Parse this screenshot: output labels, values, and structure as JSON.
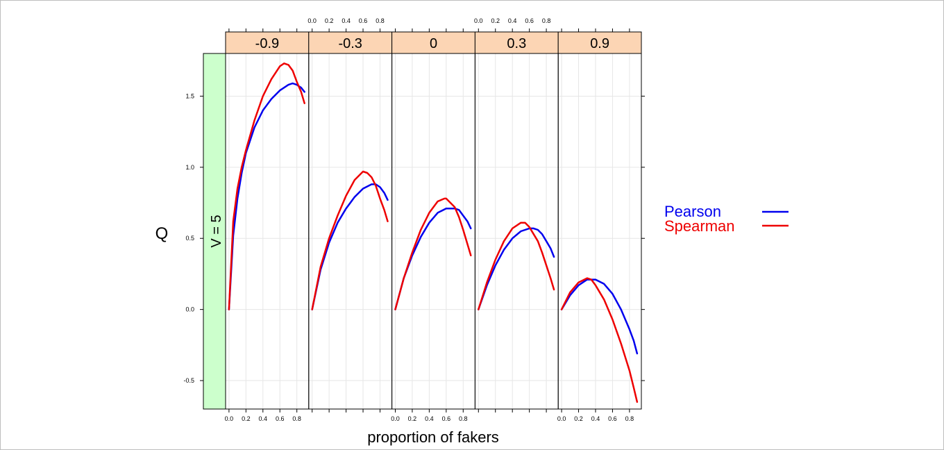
{
  "chart_data": {
    "type": "line",
    "xlabel": "proportion of fakers",
    "ylabel": "Q",
    "row_strip": "V = 5",
    "xlim": [
      -0.04,
      0.94
    ],
    "ylim": [
      -0.7,
      1.8
    ],
    "x_ticks": [
      0.0,
      0.2,
      0.4,
      0.6,
      0.8
    ],
    "x_tick_labels": [
      "0.0",
      "0.2",
      "0.4",
      "0.6",
      "0.8"
    ],
    "y_ticks": [
      -0.5,
      0.0,
      0.5,
      1.0,
      1.5
    ],
    "y_tick_labels": [
      "-0.5",
      "0.0",
      "0.5",
      "1.0",
      "1.5"
    ],
    "grid": true,
    "legend_position": "right",
    "colors": {
      "Pearson": "#0000ee",
      "Spearman": "#ee0000",
      "strip_top": "#fcd5b4",
      "strip_left": "#ccffcc",
      "grid": "#e6e6e6"
    },
    "panels": [
      {
        "strip": "-0.9",
        "series": [
          {
            "name": "Pearson",
            "x": [
              0.0,
              0.05,
              0.1,
              0.15,
              0.2,
              0.3,
              0.4,
              0.5,
              0.6,
              0.7,
              0.75,
              0.8,
              0.85,
              0.89
            ],
            "y": [
              0.0,
              0.52,
              0.78,
              0.96,
              1.1,
              1.28,
              1.4,
              1.48,
              1.54,
              1.58,
              1.59,
              1.58,
              1.56,
              1.53
            ]
          },
          {
            "name": "Spearman",
            "x": [
              0.0,
              0.05,
              0.1,
              0.15,
              0.2,
              0.3,
              0.4,
              0.5,
              0.6,
              0.65,
              0.7,
              0.75,
              0.8,
              0.85,
              0.89
            ],
            "y": [
              0.0,
              0.62,
              0.85,
              1.0,
              1.12,
              1.33,
              1.5,
              1.62,
              1.71,
              1.73,
              1.72,
              1.68,
              1.6,
              1.53,
              1.45
            ]
          }
        ]
      },
      {
        "strip": "-0.3",
        "series": [
          {
            "name": "Pearson",
            "x": [
              0.0,
              0.1,
              0.2,
              0.3,
              0.4,
              0.5,
              0.6,
              0.7,
              0.75,
              0.8,
              0.85,
              0.89
            ],
            "y": [
              0.0,
              0.28,
              0.47,
              0.61,
              0.71,
              0.79,
              0.85,
              0.88,
              0.88,
              0.86,
              0.82,
              0.77
            ]
          },
          {
            "name": "Spearman",
            "x": [
              0.0,
              0.1,
              0.2,
              0.3,
              0.4,
              0.5,
              0.6,
              0.65,
              0.7,
              0.75,
              0.8,
              0.85,
              0.89
            ],
            "y": [
              0.0,
              0.3,
              0.5,
              0.66,
              0.8,
              0.91,
              0.97,
              0.96,
              0.93,
              0.87,
              0.78,
              0.7,
              0.62
            ]
          }
        ]
      },
      {
        "strip": "0",
        "series": [
          {
            "name": "Pearson",
            "x": [
              0.0,
              0.1,
              0.2,
              0.3,
              0.4,
              0.5,
              0.6,
              0.7,
              0.75,
              0.8,
              0.85,
              0.89
            ],
            "y": [
              0.0,
              0.22,
              0.38,
              0.51,
              0.61,
              0.68,
              0.71,
              0.71,
              0.7,
              0.66,
              0.62,
              0.57
            ]
          },
          {
            "name": "Spearman",
            "x": [
              0.0,
              0.1,
              0.2,
              0.3,
              0.4,
              0.5,
              0.58,
              0.6,
              0.7,
              0.75,
              0.8,
              0.85,
              0.89
            ],
            "y": [
              0.0,
              0.22,
              0.4,
              0.56,
              0.68,
              0.76,
              0.78,
              0.78,
              0.72,
              0.65,
              0.56,
              0.46,
              0.38
            ]
          }
        ]
      },
      {
        "strip": "0.3",
        "series": [
          {
            "name": "Pearson",
            "x": [
              0.0,
              0.1,
              0.2,
              0.3,
              0.4,
              0.5,
              0.6,
              0.65,
              0.7,
              0.75,
              0.8,
              0.85,
              0.89
            ],
            "y": [
              0.0,
              0.17,
              0.31,
              0.42,
              0.5,
              0.55,
              0.57,
              0.57,
              0.56,
              0.53,
              0.48,
              0.43,
              0.37
            ]
          },
          {
            "name": "Spearman",
            "x": [
              0.0,
              0.1,
              0.2,
              0.3,
              0.4,
              0.5,
              0.55,
              0.6,
              0.7,
              0.75,
              0.8,
              0.85,
              0.89
            ],
            "y": [
              0.0,
              0.19,
              0.35,
              0.48,
              0.57,
              0.61,
              0.61,
              0.58,
              0.48,
              0.4,
              0.31,
              0.22,
              0.14
            ]
          }
        ]
      },
      {
        "strip": "0.9",
        "series": [
          {
            "name": "Pearson",
            "x": [
              0.0,
              0.1,
              0.2,
              0.3,
              0.35,
              0.4,
              0.5,
              0.6,
              0.7,
              0.8,
              0.85,
              0.89
            ],
            "y": [
              0.0,
              0.1,
              0.17,
              0.21,
              0.21,
              0.21,
              0.18,
              0.11,
              0.0,
              -0.14,
              -0.22,
              -0.31
            ]
          },
          {
            "name": "Spearman",
            "x": [
              0.0,
              0.1,
              0.2,
              0.3,
              0.35,
              0.4,
              0.5,
              0.6,
              0.7,
              0.8,
              0.85,
              0.89
            ],
            "y": [
              0.0,
              0.12,
              0.19,
              0.22,
              0.21,
              0.17,
              0.07,
              -0.07,
              -0.24,
              -0.43,
              -0.55,
              -0.65
            ]
          }
        ]
      }
    ],
    "legend": [
      {
        "name": "Pearson",
        "color": "#0000ee"
      },
      {
        "name": "Spearman",
        "color": "#ee0000"
      }
    ]
  }
}
